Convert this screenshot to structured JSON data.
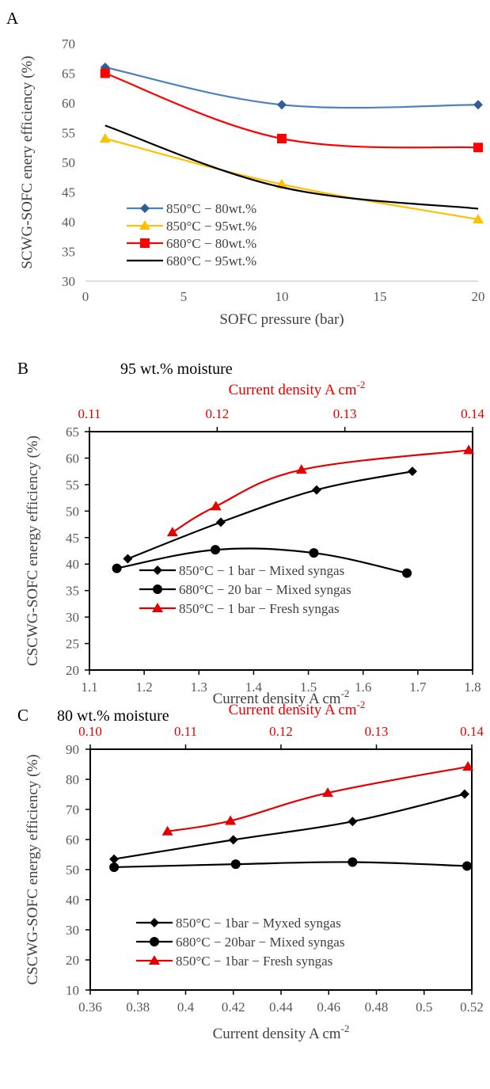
{
  "chart_data": [
    {
      "type": "line",
      "panel_label": "A",
      "title": "",
      "xlabel": "SOFC pressure (bar)",
      "ylabel": "SCWG-SOFC enery efficiency (%)",
      "xlim": [
        0,
        20
      ],
      "ylim": [
        30,
        70
      ],
      "xticks": [
        0,
        5,
        10,
        15,
        20
      ],
      "yticks": [
        30,
        35,
        40,
        45,
        50,
        55,
        60,
        65,
        70
      ],
      "grid": false,
      "legend_position": "bottom-left",
      "series": [
        {
          "name": "850°C − 80wt.%",
          "x": [
            1,
            10,
            20
          ],
          "y": [
            66.0,
            59.7,
            59.7
          ],
          "color": "#2e5e9a",
          "marker": "diamond"
        },
        {
          "name": "850°C − 95wt.%",
          "x": [
            1,
            10,
            20
          ],
          "y": [
            54.0,
            46.3,
            40.4
          ],
          "color": "#ffc000",
          "marker": "triangle"
        },
        {
          "name": "680°C − 80wt.%",
          "x": [
            1,
            10,
            20
          ],
          "y": [
            65.0,
            54.0,
            52.5
          ],
          "color": "#ff0000",
          "marker": "square"
        },
        {
          "name": "680°C − 95wt.%",
          "x": [
            1,
            10,
            20
          ],
          "y": [
            56.2,
            45.8,
            42.2
          ],
          "color": "#000000",
          "marker": "none"
        }
      ]
    },
    {
      "type": "line",
      "panel_label": "B",
      "title": "95 wt.% moisture",
      "xlabel": "Current density A cm",
      "x2label": "Current density A cm",
      "label_sup": "-2",
      "ylabel": "CSCWG-SOFC energy efficiency (%)",
      "xlim": [
        1.1,
        1.8
      ],
      "xticks": [
        "1.1",
        "1.2",
        "1.3",
        "1.4",
        "1.5",
        "1.6",
        "1.7",
        "1.8"
      ],
      "x2lim": [
        0.11,
        0.14
      ],
      "x2ticks": [
        "0.11",
        "0.12",
        "0.13",
        "0.14"
      ],
      "ylim": [
        20,
        65
      ],
      "yticks": [
        20,
        25,
        30,
        35,
        40,
        45,
        50,
        55,
        60,
        65
      ],
      "grid": false,
      "legend_position": "bottom-left",
      "series": [
        {
          "name": "850°C −   1 bar − Mixed syngas",
          "axis": "bottom",
          "x": [
            1.17,
            1.34,
            1.515,
            1.69
          ],
          "y": [
            41.0,
            47.9,
            54.0,
            57.5
          ],
          "color": "#000000",
          "marker": "diamond"
        },
        {
          "name": "680°C − 20 bar − Mixed syngas",
          "axis": "bottom",
          "x": [
            1.15,
            1.33,
            1.51,
            1.68
          ],
          "y": [
            39.2,
            42.7,
            42.1,
            38.3
          ],
          "color": "#000000",
          "marker": "circle"
        },
        {
          "name": "850°C −   1 bar − Fresh syngas",
          "axis": "top",
          "x": [
            0.1165,
            0.1199,
            0.1266,
            0.1397
          ],
          "y": [
            46.0,
            50.9,
            57.8,
            61.5
          ],
          "color": "#e30000",
          "marker": "triangle"
        }
      ]
    },
    {
      "type": "line",
      "panel_label": "C",
      "title": "80 wt.% moisture",
      "xlabel": "Current density A cm",
      "x2label": "Current density A cm",
      "label_sup": "-2",
      "ylabel": "CSCWG-SOFC energy efficiency (%)",
      "xlim": [
        0.36,
        0.52
      ],
      "xticks": [
        "0.36",
        "0.38",
        "0.4",
        "0.42",
        "0.44",
        "0.46",
        "0.48",
        "0.5",
        "0.52"
      ],
      "x2lim": [
        0.1,
        0.14
      ],
      "x2ticks": [
        "0.10",
        "0.11",
        "0.12",
        "0.13",
        "0.14"
      ],
      "ylim": [
        10,
        90
      ],
      "yticks": [
        10,
        20,
        30,
        40,
        50,
        60,
        70,
        80,
        90
      ],
      "grid": false,
      "legend_position": "bottom-center",
      "series": [
        {
          "name": "850°C −   1bar − Myxed syngas",
          "axis": "bottom",
          "x": [
            0.37,
            0.42,
            0.47,
            0.517
          ],
          "y": [
            53.5,
            59.9,
            66.0,
            75.1
          ],
          "color": "#000000",
          "marker": "diamond"
        },
        {
          "name": "680°C − 20bar − Mixed syngas",
          "axis": "bottom",
          "x": [
            0.37,
            0.421,
            0.47,
            0.518
          ],
          "y": [
            50.8,
            51.8,
            52.5,
            51.2
          ],
          "color": "#000000",
          "marker": "circle"
        },
        {
          "name": "850°C −   1bar − Fresh syngas",
          "axis": "top",
          "x": [
            0.1081,
            0.1147,
            0.1249,
            0.1396
          ],
          "y": [
            62.7,
            66.2,
            75.5,
            84.2
          ],
          "color": "#e30000",
          "marker": "triangle"
        }
      ]
    }
  ]
}
